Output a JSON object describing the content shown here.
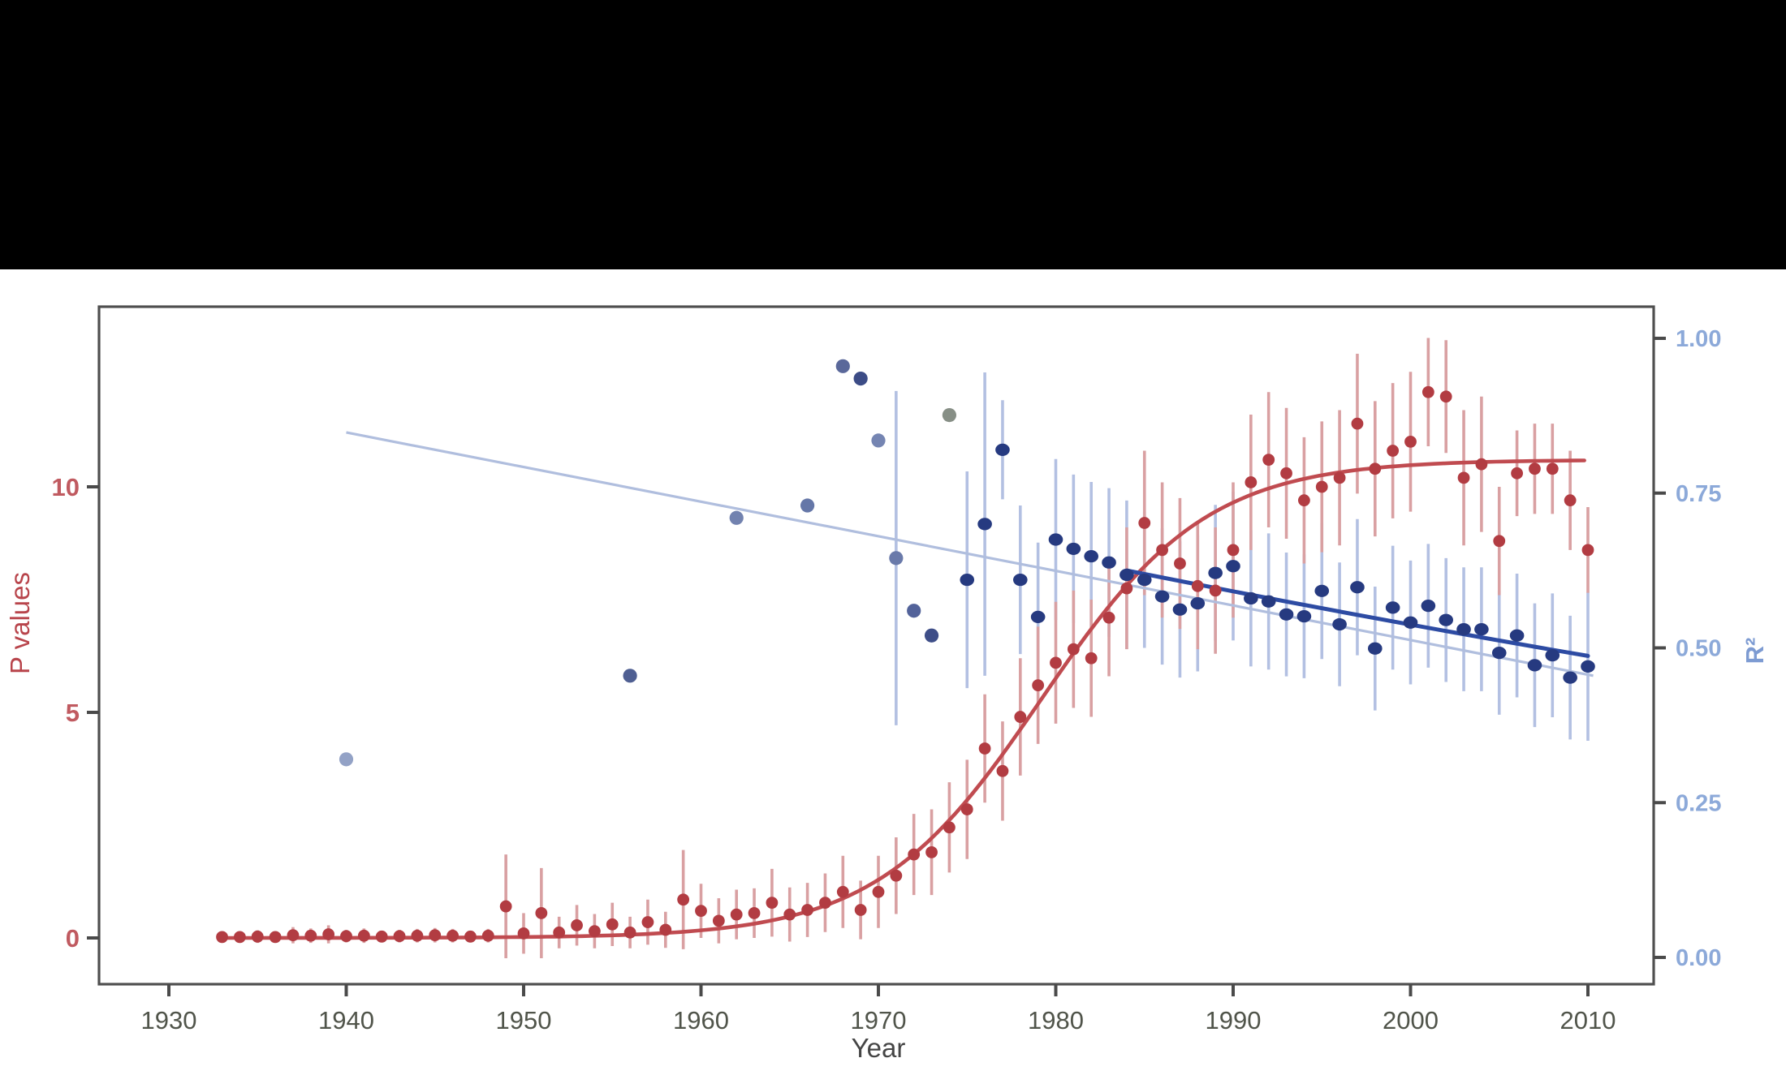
{
  "chart_data": {
    "type": "scatter",
    "title": "",
    "xlabel": "Year",
    "ylabel_left": "P values",
    "ylabel_right": "R²",
    "legend": "none",
    "grid": false,
    "x_ticks": [
      1930,
      1940,
      1950,
      1960,
      1970,
      1980,
      1990,
      2000,
      2010
    ],
    "left_axis": {
      "ticks": [
        0,
        5,
        10
      ],
      "range_shown": [
        -1.0,
        14.0
      ]
    },
    "right_axis": {
      "ticks": [
        "0.00",
        "0.25",
        "0.50",
        "0.75",
        "1.00"
      ],
      "tick_values": [
        0,
        0.25,
        0.5,
        0.75,
        1.0
      ],
      "range_shown": [
        -0.05,
        1.05
      ]
    },
    "series": [
      {
        "name": "p_values_red",
        "axis": "left",
        "marker": "circle",
        "points_year_value_err": [
          [
            1933,
            0.02,
            0.12
          ],
          [
            1934,
            0.02,
            0.12
          ],
          [
            1935,
            0.03,
            0.14
          ],
          [
            1936,
            0.02,
            0.12
          ],
          [
            1937,
            0.06,
            0.18
          ],
          [
            1938,
            0.05,
            0.16
          ],
          [
            1939,
            0.08,
            0.2
          ],
          [
            1940,
            0.04,
            0.14
          ],
          [
            1941,
            0.05,
            0.16
          ],
          [
            1942,
            0.03,
            0.13
          ],
          [
            1943,
            0.04,
            0.14
          ],
          [
            1944,
            0.05,
            0.15
          ],
          [
            1945,
            0.06,
            0.16
          ],
          [
            1946,
            0.05,
            0.15
          ],
          [
            1947,
            0.03,
            0.13
          ],
          [
            1948,
            0.05,
            0.15
          ],
          [
            1949,
            0.7,
            1.15
          ],
          [
            1950,
            0.1,
            0.45
          ],
          [
            1951,
            0.55,
            1.0
          ],
          [
            1952,
            0.12,
            0.35
          ],
          [
            1953,
            0.28,
            0.45
          ],
          [
            1954,
            0.15,
            0.38
          ],
          [
            1955,
            0.3,
            0.48
          ],
          [
            1956,
            0.12,
            0.35
          ],
          [
            1957,
            0.35,
            0.5
          ],
          [
            1958,
            0.18,
            0.4
          ],
          [
            1959,
            0.85,
            1.1
          ],
          [
            1960,
            0.6,
            0.6
          ],
          [
            1961,
            0.38,
            0.5
          ],
          [
            1962,
            0.52,
            0.55
          ],
          [
            1963,
            0.55,
            0.55
          ],
          [
            1964,
            0.78,
            0.75
          ],
          [
            1965,
            0.52,
            0.6
          ],
          [
            1966,
            0.62,
            0.6
          ],
          [
            1967,
            0.78,
            0.65
          ],
          [
            1968,
            1.02,
            0.8
          ],
          [
            1969,
            0.62,
            0.65
          ],
          [
            1970,
            1.02,
            0.8
          ],
          [
            1971,
            1.38,
            0.85
          ],
          [
            1972,
            1.85,
            0.9
          ],
          [
            1973,
            1.9,
            0.95
          ],
          [
            1974,
            2.45,
            1.0
          ],
          [
            1975,
            2.85,
            1.1
          ],
          [
            1976,
            4.2,
            1.2
          ],
          [
            1977,
            3.7,
            1.1
          ],
          [
            1978,
            4.9,
            1.3
          ],
          [
            1979,
            5.6,
            1.3
          ],
          [
            1980,
            6.1,
            1.35
          ],
          [
            1981,
            6.4,
            1.3
          ],
          [
            1982,
            6.2,
            1.3
          ],
          [
            1983,
            7.1,
            1.3
          ],
          [
            1984,
            7.75,
            1.35
          ],
          [
            1985,
            9.2,
            1.6
          ],
          [
            1986,
            8.6,
            1.5
          ],
          [
            1987,
            8.3,
            1.45
          ],
          [
            1988,
            7.8,
            1.4
          ],
          [
            1989,
            7.7,
            1.4
          ],
          [
            1990,
            8.6,
            1.5
          ],
          [
            1991,
            10.1,
            1.5
          ],
          [
            1992,
            10.6,
            1.5
          ],
          [
            1993,
            10.3,
            1.45
          ],
          [
            1994,
            9.7,
            1.4
          ],
          [
            1995,
            10.0,
            1.45
          ],
          [
            1996,
            10.2,
            1.5
          ],
          [
            1997,
            11.4,
            1.55
          ],
          [
            1998,
            10.4,
            1.5
          ],
          [
            1999,
            10.8,
            1.5
          ],
          [
            2000,
            11.0,
            1.55
          ],
          [
            2001,
            12.1,
            1.2
          ],
          [
            2002,
            12.0,
            1.25
          ],
          [
            2003,
            10.2,
            1.5
          ],
          [
            2004,
            10.5,
            1.5
          ],
          [
            2005,
            8.8,
            1.2
          ],
          [
            2006,
            10.3,
            0.95
          ],
          [
            2007,
            10.4,
            1.0
          ],
          [
            2008,
            10.4,
            1.0
          ],
          [
            2009,
            9.7,
            1.1
          ],
          [
            2010,
            8.6,
            0.95
          ]
        ]
      },
      {
        "name": "r2_sparse_blue",
        "axis": "right",
        "marker": "circle",
        "points_year_value_err_color": [
          [
            1940,
            0.32,
            0,
            "#93a2c6"
          ],
          [
            1956,
            0.455,
            0,
            "#4f5f92"
          ],
          [
            1962,
            0.71,
            0,
            "#7282af"
          ],
          [
            1966,
            0.73,
            0,
            "#6577a8"
          ],
          [
            1968,
            0.955,
            0,
            "#5a689a"
          ],
          [
            1969,
            0.935,
            0,
            "#3c4c86"
          ],
          [
            1970,
            0.835,
            0,
            "#7585b2"
          ],
          [
            1971,
            0.645,
            0.27,
            "#6a7aaa"
          ],
          [
            1972,
            0.56,
            0,
            "#53639a"
          ],
          [
            1973,
            0.52,
            0,
            "#3e4e88"
          ],
          [
            1974,
            0.876,
            0,
            "#878f86"
          ]
        ]
      },
      {
        "name": "r2_dense_navy",
        "axis": "right",
        "marker": "circle",
        "points_year_value_err": [
          [
            1975,
            0.61,
            0.175
          ],
          [
            1976,
            0.7,
            0.245
          ],
          [
            1977,
            0.82,
            0.08
          ],
          [
            1978,
            0.61,
            0.12
          ],
          [
            1979,
            0.55,
            0.12
          ],
          [
            1980,
            0.675,
            0.13
          ],
          [
            1981,
            0.66,
            0.12
          ],
          [
            1982,
            0.648,
            0.12
          ],
          [
            1983,
            0.638,
            0.12
          ],
          [
            1984,
            0.618,
            0.12
          ],
          [
            1985,
            0.61,
            0.11
          ],
          [
            1986,
            0.583,
            0.11
          ],
          [
            1987,
            0.562,
            0.11
          ],
          [
            1988,
            0.572,
            0.11
          ],
          [
            1989,
            0.621,
            0.11
          ],
          [
            1990,
            0.632,
            0.12
          ],
          [
            1991,
            0.58,
            0.11
          ],
          [
            1992,
            0.575,
            0.11
          ],
          [
            1993,
            0.554,
            0.1
          ],
          [
            1994,
            0.551,
            0.1
          ],
          [
            1995,
            0.592,
            0.11
          ],
          [
            1996,
            0.538,
            0.1
          ],
          [
            1997,
            0.598,
            0.11
          ],
          [
            1998,
            0.499,
            0.1
          ],
          [
            1999,
            0.565,
            0.1
          ],
          [
            2000,
            0.541,
            0.1
          ],
          [
            2001,
            0.568,
            0.1
          ],
          [
            2002,
            0.545,
            0.1
          ],
          [
            2003,
            0.53,
            0.1
          ],
          [
            2004,
            0.53,
            0.1
          ],
          [
            2005,
            0.492,
            0.1
          ],
          [
            2006,
            0.52,
            0.1
          ],
          [
            2007,
            0.472,
            0.1
          ],
          [
            2008,
            0.488,
            0.1
          ],
          [
            2009,
            0.452,
            0.1
          ],
          [
            2010,
            0.47,
            0.12
          ]
        ]
      }
    ],
    "fit_curves": {
      "red_logistic": {
        "L": 10.6,
        "k": 0.215,
        "x0": 1979.2,
        "year_start": 1932.8,
        "year_end": 2010.0
      },
      "light_blue_line": {
        "year1": 1940,
        "r1": 0.848,
        "year2": 2010.3,
        "r2": 0.455
      },
      "navy_line_quad": {
        "p0": [
          1984,
          0.625
        ],
        "ctrl": [
          1997.5,
          0.548
        ],
        "p1": [
          2010,
          0.487
        ]
      }
    },
    "colors": {
      "red_dot": "#b23c42",
      "red_bar": "#d9a0a2",
      "red_curve": "#c04b50",
      "navy_dot": "#263a80",
      "navy_line": "#2d4ba3",
      "blue_bar": "#b3c0e2",
      "light_line": "#b0bede",
      "axis": "#4f4f4f",
      "tick": "#4a4a4a",
      "x_tick_label": "#50544a",
      "year_label": "#454545",
      "p_tick_label": "#c05a60",
      "p_axis_label": "#b8444b",
      "r_tick_label": "#8ca9d9",
      "r_axis_label": "#7d9bd2",
      "band": "#000000",
      "background": "#ffffff"
    }
  }
}
